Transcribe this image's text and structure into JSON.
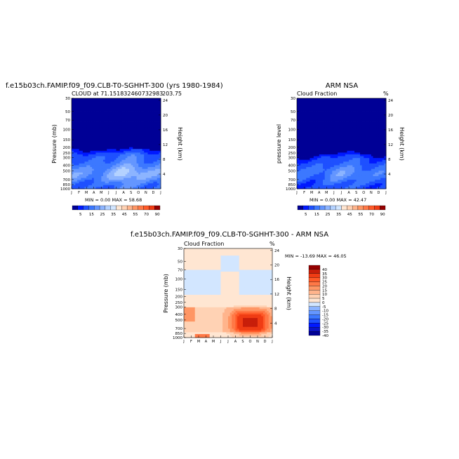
{
  "colors": {
    "blues": [
      "#000096",
      "#0019ff",
      "#1e50ff",
      "#3c78ff",
      "#6496ff",
      "#8cb4ff",
      "#b4d2ff",
      "#d2e6ff"
    ],
    "reds": [
      "#ffe6d2",
      "#ffd2b4",
      "#ffb48c",
      "#ff9664",
      "#ff7846",
      "#ff5a28",
      "#f03c14",
      "#c81e0a",
      "#960000"
    ],
    "neutral": "#f5f5f5"
  },
  "x_months": [
    "J",
    "F",
    "M",
    "A",
    "M",
    "J",
    "J",
    "A",
    "S",
    "O",
    "N",
    "D",
    "J"
  ],
  "panels": {
    "model": {
      "title": "f.e15b03ch.FAMIP.f09_f09.CLB-T0-SGHHT-300 (yrs 1980-1984)",
      "subtitle": "CLOUD at 71.151832460732983",
      "corner": "203.75",
      "ylabel": "Pressure (mb)",
      "ylabel_right": "Height (km)",
      "minmax": "MIN =   0.00 MAX =  58.68"
    },
    "obs": {
      "title": "ARM NSA",
      "subtitle": "Cloud Fraction",
      "corner": "%",
      "ylabel": "pressure level",
      "ylabel_right": "Height (km)",
      "minmax": "MIN =   0.00 MAX =  42.47"
    },
    "diff": {
      "title": "f.e15b03ch.FAMIP.f09_f09.CLB-T0-SGHHT-300 - ARM NSA",
      "subtitle": "Cloud Fraction",
      "corner": "%",
      "ylabel": "Pressure (mb)",
      "ylabel_right": "Height (km)",
      "minmax": "MIN = -13.69 MAX =  46.05"
    }
  },
  "chart_data": [
    {
      "type": "heatmap",
      "name": "model",
      "x": "month (Jan-Jan)",
      "y_pressure_ticks": [
        30,
        50,
        70,
        100,
        150,
        200,
        250,
        300,
        400,
        500,
        700,
        850,
        1000
      ],
      "y_height_ticks_km": [
        4,
        8,
        12,
        16,
        20,
        24
      ],
      "cloud_top_mb_by_month": [
        230,
        225,
        240,
        250,
        245,
        235,
        230,
        225,
        220,
        225,
        230,
        230,
        230
      ],
      "max_fraction_by_month": [
        45,
        40,
        38,
        35,
        38,
        45,
        52,
        58,
        55,
        50,
        45,
        42,
        45
      ],
      "range": [
        0,
        58.68
      ],
      "colorbar_labels": [
        "5",
        "15",
        "25",
        "35",
        "45",
        "55",
        "70",
        "90"
      ]
    },
    {
      "type": "heatmap",
      "name": "obs",
      "x": "month (Jan-Jan)",
      "cloud_top_mb_by_month": [
        300,
        320,
        300,
        290,
        270,
        280,
        240,
        230,
        260,
        280,
        270,
        300,
        300
      ],
      "max_fraction_by_month": [
        30,
        28,
        25,
        28,
        32,
        40,
        42,
        38,
        35,
        32,
        30,
        30,
        30
      ],
      "range": [
        0,
        42.47
      ],
      "colorbar_labels": [
        "5",
        "15",
        "25",
        "35",
        "45",
        "55",
        "70",
        "90"
      ]
    },
    {
      "type": "heatmap",
      "name": "difference",
      "x": "month (Jan-Jan)",
      "negative_band_mb": [
        70,
        180
      ],
      "positive_core_months": [
        8,
        10
      ],
      "positive_core_mb": [
        450,
        650
      ],
      "range": [
        -13.69,
        46.05
      ],
      "colorbar_labels": [
        "40",
        "35",
        "30",
        "25",
        "20",
        "15",
        "10",
        "5",
        "0",
        "-5",
        "-10",
        "-15",
        "-20",
        "-25",
        "-30",
        "-35",
        "-40"
      ]
    }
  ]
}
